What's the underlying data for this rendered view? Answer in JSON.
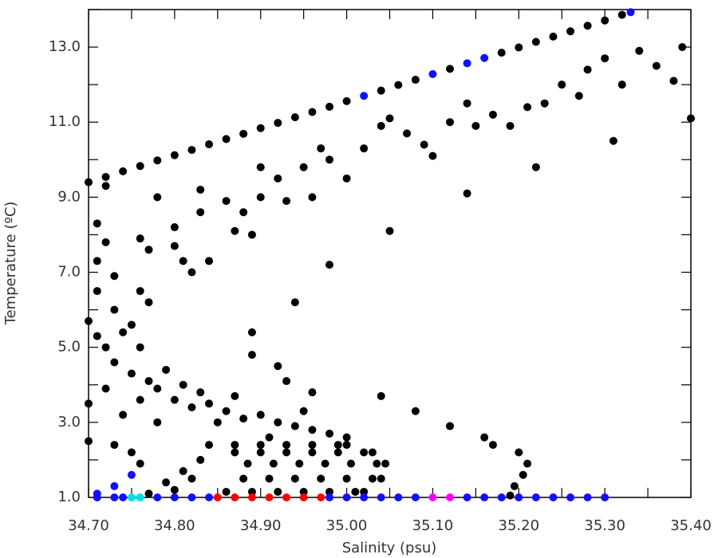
{
  "chart_data": {
    "type": "scatter",
    "x_label": "Salinity (psu)",
    "y_label": "Temperature (ºC)",
    "xlim": [
      34.7,
      35.4
    ],
    "ylim": [
      1.0,
      14.0
    ],
    "xticks": [
      {
        "value": 34.7,
        "label": "34.70"
      },
      {
        "value": 34.8,
        "label": "34.80"
      },
      {
        "value": 34.9,
        "label": "34.90"
      },
      {
        "value": 35.0,
        "label": "35.00"
      },
      {
        "value": 35.1,
        "label": "35.10"
      },
      {
        "value": 35.2,
        "label": "35.20"
      },
      {
        "value": 35.3,
        "label": "35.30"
      },
      {
        "value": 35.4,
        "label": "35.40"
      }
    ],
    "x_minor_ticks": [
      34.75,
      34.85,
      34.95,
      35.05,
      35.15,
      35.25,
      35.35
    ],
    "yticks": [
      {
        "value": 1,
        "label": "1.0"
      },
      {
        "value": 3,
        "label": "3.0"
      },
      {
        "value": 5,
        "label": "5.0"
      },
      {
        "value": 7,
        "label": "7.0"
      },
      {
        "value": 9,
        "label": "9.0"
      },
      {
        "value": 11,
        "label": "11.0"
      },
      {
        "value": 13,
        "label": "13.0"
      }
    ],
    "y_minor_ticks": [
      2,
      4,
      6,
      8,
      10,
      12,
      14
    ],
    "grid": false,
    "series": [
      {
        "color": "#000000",
        "x": [
          34.7,
          34.72,
          34.74,
          34.76,
          34.78,
          34.8,
          34.82,
          34.84,
          34.86,
          34.88,
          34.9,
          34.92,
          34.94,
          34.96,
          34.98,
          35.0,
          35.04,
          35.06,
          35.08,
          35.12,
          35.18,
          35.2,
          35.22,
          35.24,
          35.26,
          35.28,
          35.3,
          35.32,
          34.72,
          34.71,
          34.72,
          34.71,
          34.73,
          34.76,
          34.77,
          34.76,
          34.78,
          34.8,
          34.8,
          34.81,
          34.82,
          34.83,
          34.83,
          34.84,
          34.86,
          34.87,
          34.88,
          34.89,
          34.9,
          34.9,
          34.92,
          34.93,
          34.95,
          34.96,
          34.97,
          34.98,
          35.0,
          35.02,
          35.04,
          35.05,
          35.07,
          35.09,
          35.1,
          35.12,
          35.14,
          35.15,
          35.17,
          35.19,
          35.21,
          35.23,
          35.25,
          35.27,
          35.28,
          35.3,
          35.32,
          35.34,
          35.36,
          35.38,
          35.39,
          35.4,
          35.22,
          35.14,
          35.05,
          34.98,
          34.94,
          34.89,
          34.89,
          34.92,
          34.93,
          34.96,
          35.04,
          35.08,
          35.12,
          35.16,
          35.31,
          34.7,
          34.71,
          34.72,
          34.73,
          34.74,
          34.75,
          34.76,
          34.77,
          34.78,
          34.8,
          34.79,
          34.82,
          34.84,
          34.86,
          34.88,
          34.9,
          34.92,
          34.94,
          34.96,
          34.98,
          35.0,
          34.72,
          34.74,
          34.76,
          34.78,
          34.7,
          34.71,
          34.73,
          34.75,
          34.77,
          34.81,
          34.83,
          34.85,
          34.87,
          34.91,
          34.95,
          34.84,
          34.87,
          34.885,
          34.88,
          34.86,
          34.87,
          34.9,
          34.915,
          34.91,
          34.89,
          34.9,
          34.93,
          34.945,
          34.94,
          34.92,
          34.93,
          34.96,
          34.975,
          34.97,
          34.95,
          34.96,
          34.99,
          35.005,
          35.0,
          34.98,
          34.99,
          35.02,
          35.035,
          35.03,
          35.01,
          35.0,
          35.03,
          35.045,
          35.04,
          35.02,
          34.77,
          34.79,
          34.81,
          34.83,
          34.8,
          34.82,
          34.7,
          34.73,
          34.75,
          34.76,
          35.17,
          35.2,
          35.21,
          35.205,
          35.195,
          35.19
        ],
        "values": [
          9.4,
          9.54,
          9.69,
          9.83,
          9.98,
          10.12,
          10.26,
          10.41,
          10.55,
          10.69,
          10.84,
          10.98,
          11.13,
          11.27,
          11.41,
          11.56,
          11.84,
          11.99,
          12.13,
          12.42,
          12.85,
          12.99,
          13.14,
          13.28,
          13.42,
          13.57,
          13.71,
          13.86,
          9.3,
          8.3,
          7.8,
          7.3,
          6.9,
          7.9,
          7.6,
          6.5,
          9.0,
          8.2,
          7.7,
          7.3,
          7.0,
          9.2,
          8.6,
          7.3,
          8.9,
          8.1,
          8.6,
          8.0,
          9.8,
          9.0,
          9.5,
          8.9,
          9.8,
          9.0,
          10.3,
          10.0,
          9.5,
          10.3,
          10.9,
          11.1,
          10.7,
          10.4,
          10.1,
          11.0,
          11.5,
          10.9,
          11.2,
          10.9,
          11.4,
          11.5,
          12.0,
          11.7,
          12.4,
          12.7,
          12.0,
          12.9,
          12.5,
          12.1,
          13.0,
          11.1,
          9.8,
          9.1,
          8.1,
          7.2,
          6.2,
          5.4,
          4.8,
          4.5,
          4.1,
          3.8,
          3.7,
          3.3,
          2.9,
          2.6,
          10.5,
          5.7,
          5.3,
          5.0,
          4.6,
          5.4,
          4.3,
          5.0,
          4.1,
          3.9,
          3.6,
          4.4,
          3.4,
          3.5,
          3.3,
          3.1,
          3.2,
          3.0,
          2.9,
          2.8,
          2.7,
          2.6,
          3.9,
          3.2,
          3.6,
          3.0,
          3.5,
          6.5,
          6.0,
          5.6,
          6.2,
          4.0,
          3.8,
          3.0,
          3.7,
          2.6,
          3.3,
          2.4,
          2.2,
          1.9,
          1.5,
          1.15,
          2.4,
          2.2,
          1.9,
          1.5,
          1.15,
          2.4,
          2.2,
          1.9,
          1.5,
          1.15,
          2.4,
          2.2,
          1.9,
          1.5,
          1.15,
          2.4,
          2.2,
          1.9,
          1.5,
          1.15,
          2.4,
          2.2,
          1.9,
          1.5,
          1.15,
          2.4,
          2.2,
          1.9,
          1.5,
          1.15,
          1.1,
          1.4,
          1.7,
          2.0,
          1.2,
          1.5,
          2.5,
          2.4,
          2.2,
          1.9,
          2.4,
          2.2,
          1.9,
          1.6,
          1.3,
          1.05
        ]
      },
      {
        "color": "#1010ff",
        "x": [
          35.02,
          35.1,
          35.14,
          35.16,
          35.33,
          34.75,
          34.73,
          34.71,
          34.71,
          34.73,
          34.74,
          34.78,
          34.8,
          34.82,
          34.84,
          34.98,
          35.0,
          35.02,
          35.04,
          35.06,
          35.08,
          35.14,
          35.16,
          35.18,
          35.2,
          35.22,
          35.24,
          35.26,
          35.28,
          35.3
        ],
        "values": [
          11.7,
          12.28,
          12.57,
          12.71,
          13.93,
          1.6,
          1.3,
          1.1,
          1.0,
          1.0,
          1.0,
          1.0,
          1.0,
          1.0,
          1.0,
          1.0,
          1.0,
          1.0,
          1.0,
          1.0,
          1.0,
          1.0,
          1.0,
          1.0,
          1.0,
          1.0,
          1.0,
          1.0,
          1.0,
          1.0
        ]
      },
      {
        "color": "#ff0000",
        "x": [
          34.85,
          34.87,
          34.89,
          34.91,
          34.93,
          34.95,
          34.97
        ],
        "values": [
          1.0,
          1.0,
          1.0,
          1.0,
          1.0,
          1.0,
          1.0
        ]
      },
      {
        "color": "#00e0e0",
        "x": [
          34.75,
          34.76
        ],
        "values": [
          1.0,
          1.0
        ]
      },
      {
        "color": "#ff00ff",
        "x": [
          35.1,
          35.12
        ],
        "values": [
          1.0,
          1.0
        ]
      }
    ]
  }
}
